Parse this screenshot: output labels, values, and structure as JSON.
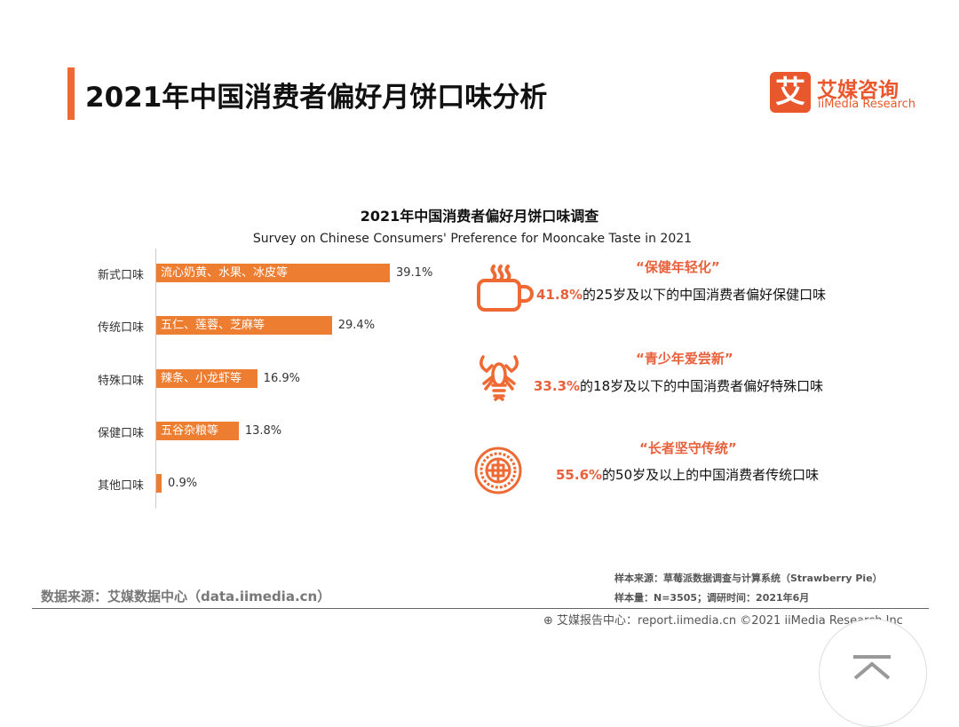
{
  "header": {
    "title": "2021年中国消费者偏好月饼口味分析",
    "logo_mark": "艾",
    "logo_cn": "艾媒咨询",
    "logo_en": "iiMedia Research",
    "accent": "#ee6a32"
  },
  "chart_data": {
    "type": "bar",
    "orientation": "horizontal",
    "title": "2021年中国消费者偏好月饼口味调查",
    "subtitle": "Survey on Chinese Consumers' Preference for Mooncake Taste in 2021",
    "categories": [
      "新式口味",
      "传统口味",
      "特殊口味",
      "保健口味",
      "其他口味"
    ],
    "bar_labels": [
      "流心奶黄、水果、冰皮等",
      "五仁、莲蓉、芝麻等",
      "辣条、小龙虾等",
      "五谷杂粮等",
      ""
    ],
    "values": [
      39.1,
      29.4,
      16.9,
      13.8,
      0.9
    ],
    "value_labels": [
      "39.1%",
      "29.4%",
      "16.9%",
      "13.8%",
      "0.9%"
    ],
    "bar_color": "#ed7d31",
    "grid": false
  },
  "insights": [
    {
      "icon": "cup-icon",
      "heading": "“保健年轻化”",
      "pct": "41.8%",
      "text": "的25岁及以下的中国消费者偏好保健口味"
    },
    {
      "icon": "crayfish-icon",
      "heading": "“青少年爱尝新”",
      "pct": "33.3%",
      "text": "的18岁及以下的中国消费者偏好特殊口味"
    },
    {
      "icon": "mooncake-icon",
      "heading": "“长者坚守传统”",
      "pct": "55.6%",
      "text": "的50岁及以上的中国消费者传统口味"
    }
  ],
  "footer": {
    "source": "数据来源：艾媒数据中心（data.iimedia.cn）",
    "sample_source": "样本来源：草莓派数据调查与计算系统（Strawberry Pie）",
    "sample_size": "样本量：N=3505；调研时间：2021年6月",
    "copyright": "艾媒报告中心：report.iimedia.cn   ©2021  iiMedia Research  Inc"
  }
}
